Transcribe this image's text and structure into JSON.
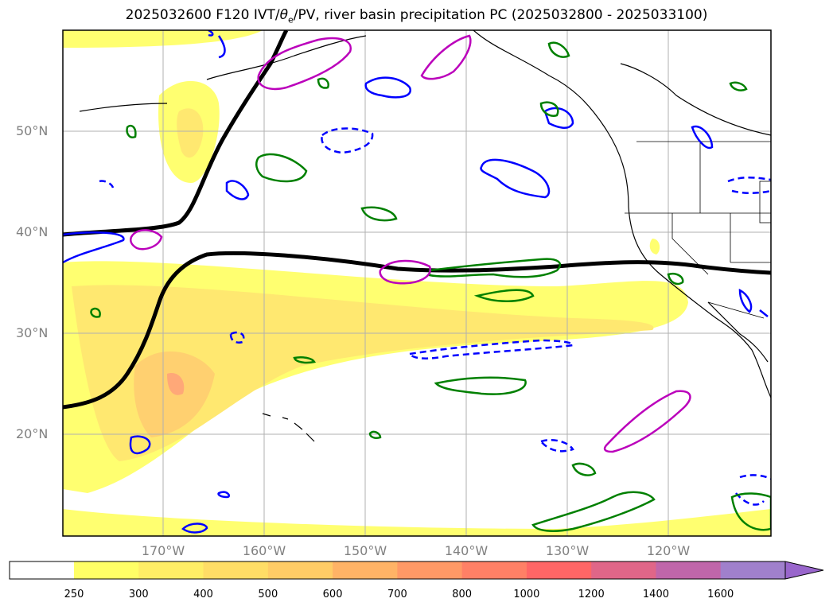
{
  "title": {
    "prefix": "2025032600 F120 IVT/",
    "theta_symbol": "θ",
    "theta_subscript": "e",
    "suffix": "/PV, river basin precipitation PC (2025032800 - 2025033100)"
  },
  "map": {
    "lat_labels": [
      "50°N",
      "40°N",
      "30°N",
      "20°N"
    ],
    "lon_labels": [
      "170°W",
      "160°W",
      "150°W",
      "140°W",
      "130°W",
      "120°W"
    ],
    "gridlines": true
  },
  "colorbar": {
    "levels": [
      "250",
      "300",
      "400",
      "500",
      "600",
      "700",
      "800",
      "1000",
      "1200",
      "1400",
      "1600"
    ],
    "colors": [
      "#ffff66",
      "#ffee66",
      "#ffdd66",
      "#ffcc66",
      "#ffb366",
      "#ff9966",
      "#ff8066",
      "#ff6666",
      "#e06688",
      "#c066aa",
      "#a080cc",
      "#9966cc"
    ],
    "extend": "max"
  },
  "colors": {
    "ivt_fill": "#ffff70",
    "jet_line": "#000000",
    "theta_line": "#0000ff",
    "pv_line": "#008000",
    "precip_line": "#bb00bb",
    "grid": "#b0b0b0"
  }
}
